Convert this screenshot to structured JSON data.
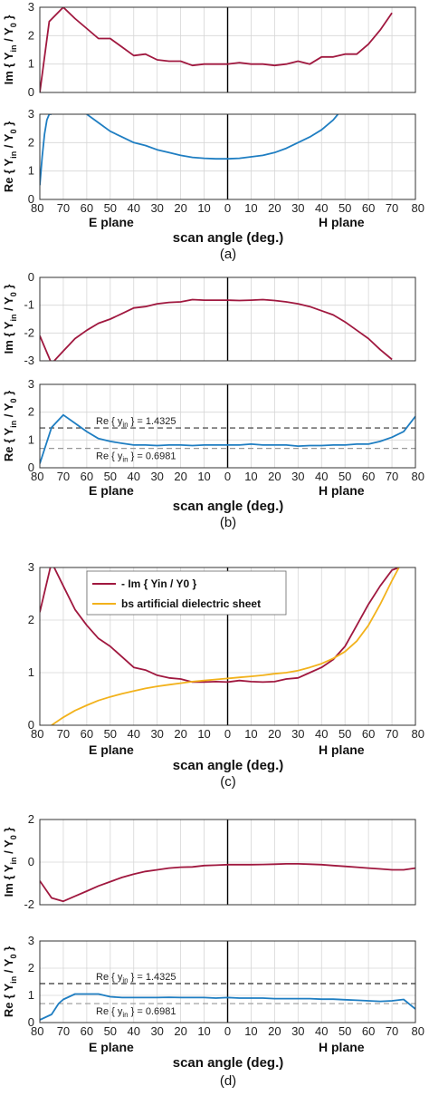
{
  "colors": {
    "im": "#a0183f",
    "re": "#1f7ec2",
    "bs": "#f2b21c",
    "grid": "#d6d6d6",
    "axis": "#000000"
  },
  "chart_data": [
    {
      "id": "a",
      "caption": "(a)",
      "type": "line",
      "x_label": "scan angle (deg.)",
      "x_ticks": [
        "80",
        "70",
        "60",
        "50",
        "40",
        "30",
        "20",
        "10",
        "0",
        "10",
        "20",
        "30",
        "40",
        "50",
        "60",
        "70",
        "80"
      ],
      "e_plane_label": "E plane",
      "h_plane_label": "H plane",
      "subplots": [
        {
          "ylabel": "Im { Yin / Y0 }",
          "ylim": [
            0,
            3
          ],
          "yticks": [
            "0",
            "1",
            "2",
            "3"
          ],
          "series": [
            {
              "color": "im",
              "x": [
                -80,
                -76,
                -70,
                -65,
                -60,
                -55,
                -50,
                -45,
                -40,
                -35,
                -30,
                -25,
                -20,
                -15,
                -10,
                -5,
                0,
                5,
                10,
                15,
                20,
                25,
                30,
                35,
                40,
                45,
                50,
                55,
                60,
                65,
                70
              ],
              "y": [
                0,
                2.5,
                3.0,
                2.6,
                2.25,
                1.9,
                1.9,
                1.6,
                1.3,
                1.35,
                1.15,
                1.1,
                1.1,
                0.95,
                1.0,
                1.0,
                1.0,
                1.05,
                1.0,
                1.0,
                0.95,
                1.0,
                1.1,
                1.0,
                1.25,
                1.25,
                1.35,
                1.35,
                1.7,
                2.2,
                2.8
              ]
            }
          ]
        },
        {
          "ylabel": "Re { Yin / Y0 }",
          "ylim": [
            0,
            3
          ],
          "yticks": [
            "0",
            "1",
            "2",
            "3"
          ],
          "series": [
            {
              "color": "re",
              "x": [
                -80,
                -79,
                -78,
                -77,
                -76,
                -75
              ],
              "y": [
                0.5,
                1.5,
                2.3,
                2.8,
                3.0,
                3.0
              ]
            },
            {
              "color": "re",
              "x": [
                -60,
                -55,
                -50,
                -45,
                -40,
                -35,
                -30,
                -25,
                -20,
                -15,
                -10,
                -5,
                0,
                5,
                10,
                15,
                20,
                25,
                30,
                35,
                40,
                45,
                47
              ],
              "y": [
                3.0,
                2.7,
                2.4,
                2.2,
                2.0,
                1.9,
                1.75,
                1.65,
                1.55,
                1.48,
                1.45,
                1.43,
                1.43,
                1.45,
                1.5,
                1.55,
                1.65,
                1.8,
                2.0,
                2.2,
                2.45,
                2.8,
                3.0
              ]
            }
          ]
        }
      ]
    },
    {
      "id": "b",
      "caption": "(b)",
      "type": "line",
      "x_label": "scan angle (deg.)",
      "x_ticks": [
        "80",
        "70",
        "60",
        "50",
        "40",
        "30",
        "20",
        "10",
        "0",
        "10",
        "20",
        "30",
        "40",
        "50",
        "60",
        "70",
        "80"
      ],
      "e_plane_label": "E plane",
      "h_plane_label": "H plane",
      "subplots": [
        {
          "ylabel": "Im { Yin / Y0 }",
          "ylim": [
            -3,
            0
          ],
          "yticks": [
            "-3",
            "-2",
            "-1",
            "0"
          ],
          "series": [
            {
              "color": "im",
              "x": [
                -80,
                -75,
                -70,
                -65,
                -60,
                -55,
                -50,
                -45,
                -40,
                -35,
                -30,
                -25,
                -20,
                -15,
                -10,
                -5,
                0,
                5,
                10,
                15,
                20,
                25,
                30,
                35,
                40,
                45,
                50,
                55,
                60,
                65,
                70
              ],
              "y": [
                -2.1,
                -3.1,
                -2.65,
                -2.2,
                -1.9,
                -1.65,
                -1.5,
                -1.3,
                -1.1,
                -1.05,
                -0.95,
                -0.9,
                -0.88,
                -0.8,
                -0.82,
                -0.82,
                -0.82,
                -0.83,
                -0.82,
                -0.8,
                -0.83,
                -0.88,
                -0.95,
                -1.05,
                -1.2,
                -1.35,
                -1.6,
                -1.9,
                -2.2,
                -2.6,
                -2.95
              ]
            }
          ]
        },
        {
          "ylabel": "Re { Yin / Y0 }",
          "ylim": [
            0,
            3
          ],
          "yticks": [
            "0",
            "1",
            "2",
            "3"
          ],
          "ref_lines": [
            {
              "y": 1.4325,
              "label": "Re { yin } = 1.4325",
              "style": "dark"
            },
            {
              "y": 0.6981,
              "label": "Re { yin } = 0.6981",
              "style": "light"
            }
          ],
          "series": [
            {
              "color": "re",
              "x": [
                -80,
                -75,
                -70,
                -65,
                -60,
                -55,
                -50,
                -45,
                -40,
                -35,
                -30,
                -25,
                -20,
                -15,
                -10,
                -5,
                0,
                5,
                10,
                15,
                20,
                25,
                30,
                35,
                40,
                45,
                50,
                55,
                60,
                65,
                70,
                75,
                80
              ],
              "y": [
                0.15,
                1.45,
                1.9,
                1.6,
                1.3,
                1.05,
                0.95,
                0.88,
                0.82,
                0.82,
                0.8,
                0.82,
                0.82,
                0.8,
                0.82,
                0.82,
                0.82,
                0.82,
                0.85,
                0.82,
                0.82,
                0.82,
                0.78,
                0.8,
                0.8,
                0.82,
                0.82,
                0.85,
                0.85,
                0.95,
                1.1,
                1.3,
                1.85
              ]
            }
          ]
        }
      ]
    },
    {
      "id": "c",
      "caption": "(c)",
      "type": "line",
      "x_label": "scan angle (deg.)",
      "x_ticks": [
        "80",
        "70",
        "60",
        "50",
        "40",
        "30",
        "20",
        "10",
        "0",
        "10",
        "20",
        "30",
        "40",
        "50",
        "60",
        "70",
        "80"
      ],
      "e_plane_label": "E plane",
      "h_plane_label": "H plane",
      "legend": [
        {
          "label": "- Im { Yin / Y0 }",
          "color": "im"
        },
        {
          "label": "bs artificial dielectric sheet",
          "color": "bs"
        }
      ],
      "subplots": [
        {
          "ylabel": "",
          "ylim": [
            0,
            3
          ],
          "yticks": [
            "0",
            "1",
            "2",
            "3"
          ],
          "series": [
            {
              "color": "im",
              "x": [
                -80,
                -75,
                -70,
                -65,
                -60,
                -55,
                -50,
                -45,
                -40,
                -35,
                -30,
                -25,
                -20,
                -15,
                -10,
                -5,
                0,
                5,
                10,
                15,
                20,
                25,
                30,
                35,
                40,
                45,
                50,
                55,
                60,
                65,
                70,
                73
              ],
              "y": [
                2.15,
                3.1,
                2.65,
                2.2,
                1.9,
                1.65,
                1.5,
                1.3,
                1.1,
                1.05,
                0.95,
                0.9,
                0.88,
                0.82,
                0.82,
                0.83,
                0.82,
                0.85,
                0.83,
                0.82,
                0.83,
                0.88,
                0.9,
                1.0,
                1.1,
                1.25,
                1.5,
                1.9,
                2.3,
                2.65,
                2.95,
                3.0
              ]
            },
            {
              "color": "bs",
              "x": [
                -75,
                -70,
                -65,
                -60,
                -55,
                -50,
                -45,
                -40,
                -35,
                -30,
                -25,
                -20,
                -15,
                -10,
                -5,
                0,
                5,
                10,
                15,
                20,
                25,
                30,
                35,
                40,
                45,
                50,
                55,
                60,
                65,
                70,
                73
              ],
              "y": [
                0,
                0.15,
                0.28,
                0.38,
                0.47,
                0.54,
                0.6,
                0.65,
                0.7,
                0.74,
                0.77,
                0.8,
                0.83,
                0.85,
                0.87,
                0.89,
                0.91,
                0.93,
                0.95,
                0.98,
                1.0,
                1.04,
                1.1,
                1.17,
                1.27,
                1.4,
                1.6,
                1.9,
                2.3,
                2.75,
                3.0
              ]
            }
          ]
        }
      ]
    },
    {
      "id": "d",
      "caption": "(d)",
      "type": "line",
      "x_label": "scan angle (deg.)",
      "x_ticks": [
        "80",
        "70",
        "60",
        "50",
        "40",
        "30",
        "20",
        "10",
        "0",
        "10",
        "20",
        "30",
        "40",
        "50",
        "60",
        "70",
        "80"
      ],
      "e_plane_label": "E plane",
      "h_plane_label": "H plane",
      "subplots": [
        {
          "ylabel": "Im { Yin / Y0 }",
          "ylim": [
            -2,
            3
          ],
          "yticks": [
            "-2",
            "0",
            "2"
          ],
          "series": [
            {
              "color": "im",
              "x": [
                -80,
                -75,
                -70,
                -65,
                -60,
                -55,
                -50,
                -45,
                -40,
                -35,
                -30,
                -25,
                -20,
                -15,
                -10,
                -5,
                0,
                5,
                10,
                15,
                20,
                25,
                30,
                35,
                40,
                45,
                50,
                55,
                60,
                65,
                70,
                75,
                80
              ],
              "y": [
                -0.6,
                -1.6,
                -1.8,
                -1.5,
                -1.2,
                -0.9,
                -0.65,
                -0.4,
                -0.2,
                -0.05,
                0.05,
                0.15,
                0.2,
                0.22,
                0.3,
                0.32,
                0.35,
                0.35,
                0.35,
                0.36,
                0.38,
                0.4,
                0.4,
                0.38,
                0.35,
                0.3,
                0.25,
                0.2,
                0.15,
                0.1,
                0.05,
                0.05,
                0.15
              ]
            }
          ]
        },
        {
          "ylabel": "Re { Yin / Y0 }",
          "ylim": [
            0,
            3
          ],
          "yticks": [
            "0",
            "1",
            "2",
            "3"
          ],
          "ref_lines": [
            {
              "y": 1.4325,
              "label": "Re { yin } = 1.4325",
              "style": "dark"
            },
            {
              "y": 0.6981,
              "label": "Re { yin } = 0.6981",
              "style": "light"
            }
          ],
          "series": [
            {
              "color": "re",
              "x": [
                -80,
                -75,
                -72,
                -70,
                -65,
                -60,
                -55,
                -50,
                -45,
                -40,
                -35,
                -30,
                -25,
                -20,
                -15,
                -10,
                -5,
                0,
                5,
                10,
                15,
                20,
                25,
                30,
                35,
                40,
                45,
                50,
                55,
                60,
                65,
                70,
                75,
                80
              ],
              "y": [
                0.1,
                0.3,
                0.7,
                0.85,
                1.05,
                1.05,
                1.05,
                0.95,
                0.92,
                0.92,
                0.92,
                0.92,
                0.93,
                0.92,
                0.92,
                0.92,
                0.9,
                0.92,
                0.9,
                0.9,
                0.9,
                0.88,
                0.88,
                0.88,
                0.88,
                0.86,
                0.86,
                0.84,
                0.82,
                0.8,
                0.78,
                0.8,
                0.85,
                0.5
              ]
            }
          ]
        }
      ]
    }
  ]
}
